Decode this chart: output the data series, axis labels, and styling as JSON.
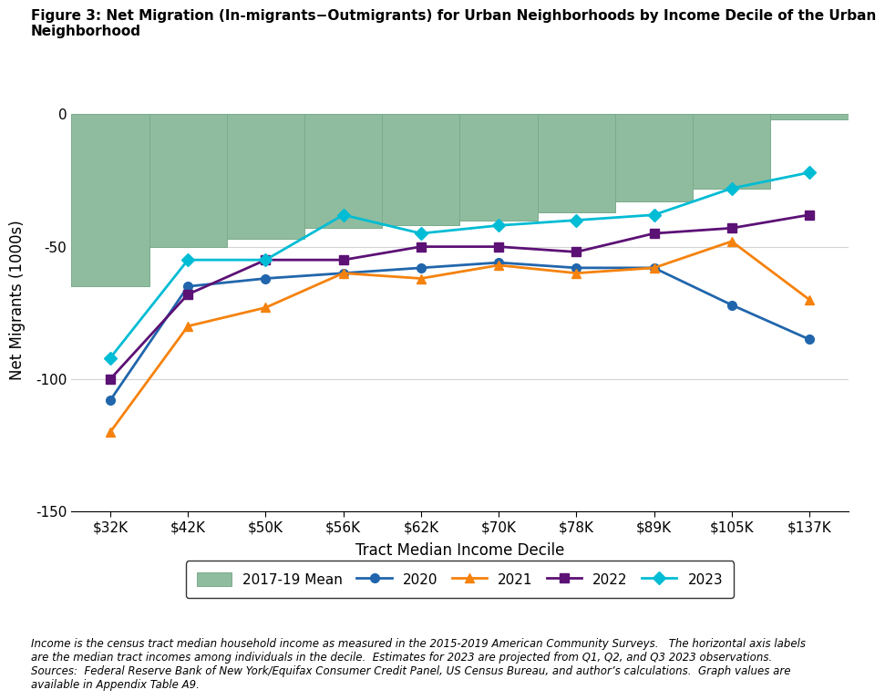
{
  "title": "Figure 3: Net Migration (In-migrants−Outmigrants) for Urban Neighborhoods by Income Decile of the Urban\nNeighborhood",
  "xlabel": "Tract Median Income Decile",
  "ylabel": "Net Migrants (1000s)",
  "footnote": "Income is the census tract median household income as measured in the 2015-2019 American Community Surveys.   The horizontal axis labels\nare the median tract incomes among individuals in the decile.  Estimates for 2023 are projected from Q1, Q2, and Q3 2023 observations.\nSources:  Federal Reserve Bank of New York/Equifax Consumer Credit Panel, US Census Bureau, and author’s calculations.  Graph values are\navailable in Appendix Table A9.",
  "x_labels": [
    "$32K",
    "$42K",
    "$50K",
    "$56K",
    "$62K",
    "$70K",
    "$78K",
    "$89K",
    "$105K",
    "$137K"
  ],
  "ylim": [
    -150,
    10
  ],
  "yticks": [
    -150,
    -100,
    -50,
    0
  ],
  "bar_values": [
    -65,
    -50,
    -47,
    -43,
    -42,
    -40,
    -37,
    -33,
    -28,
    -2
  ],
  "bar_color": "#8fbc9e",
  "bar_edgecolor": "#7aab8a",
  "line_2020": [
    -108,
    -65,
    -62,
    -60,
    -58,
    -56,
    -58,
    -58,
    -72,
    -85
  ],
  "line_2021": [
    -120,
    -80,
    -73,
    -60,
    -62,
    -57,
    -60,
    -58,
    -48,
    -70
  ],
  "line_2022": [
    -100,
    -68,
    -55,
    -55,
    -50,
    -50,
    -52,
    -45,
    -43,
    -38
  ],
  "line_2023": [
    -92,
    -55,
    -55,
    -38,
    -45,
    -42,
    -40,
    -38,
    -28,
    -22
  ],
  "color_2020": "#2166ac",
  "color_2021": "#f5820d",
  "color_2022": "#5c1175",
  "color_2023": "#00bcd4",
  "marker_2020": "o",
  "marker_2021": "^",
  "marker_2022": "s",
  "marker_2023": "D",
  "linewidth": 2.0,
  "markersize": 7
}
